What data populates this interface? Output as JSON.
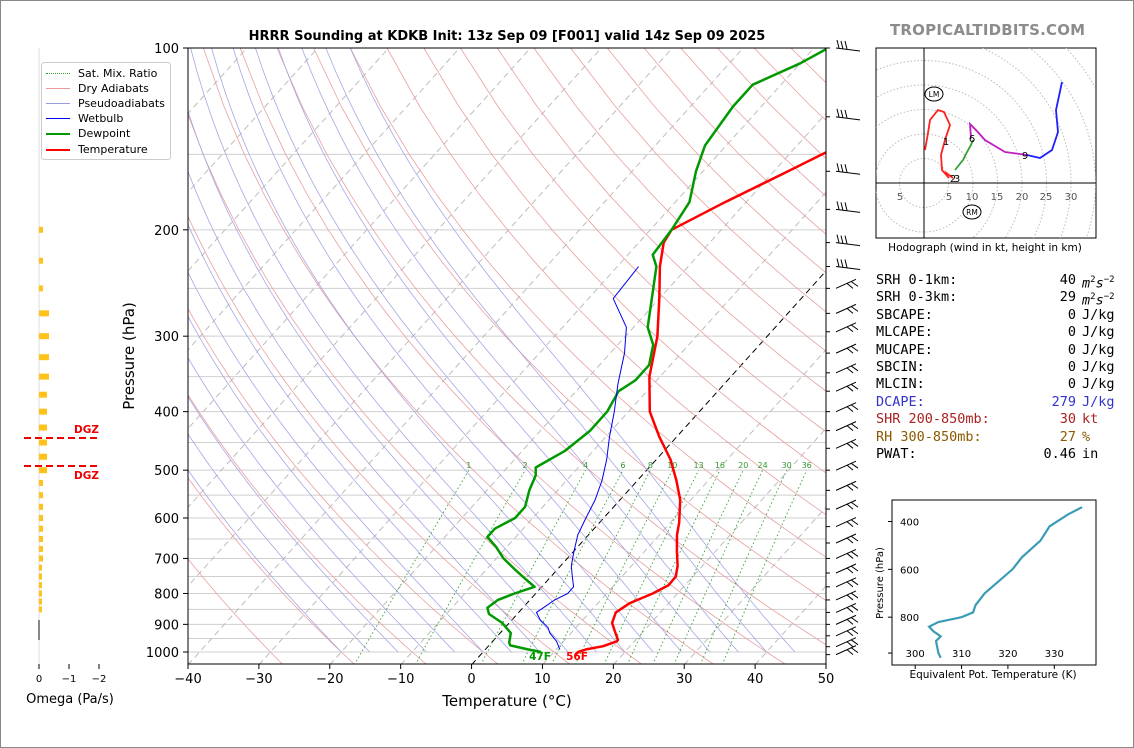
{
  "brand": "TROPICALTIDBITS.COM",
  "chart_data": {
    "type": "line",
    "title": "HRRR Sounding at KDKB Init: 13z Sep 09 [F001] valid 14z Sep 09 2025",
    "xlabel": "Temperature (°C)",
    "ylabel": "Pressure (hPa)",
    "xlim": [
      -40,
      50
    ],
    "ylim": [
      1050,
      100
    ],
    "x_ticks": [
      "−40",
      "−30",
      "−20",
      "−10",
      "0",
      "10",
      "20",
      "30",
      "40",
      "50"
    ],
    "y_ticks": [
      "100",
      "200",
      "300",
      "400",
      "500",
      "600",
      "700",
      "800",
      "900",
      "1000"
    ],
    "y_scale": "log",
    "legend_position": "top-left",
    "legend": [
      "Sat. Mix. Ratio",
      "Dry Adiabats",
      "Pseudoadiabats",
      "Wetbulb",
      "Dewpoint",
      "Temperature"
    ],
    "mixing_ratio_labels": [
      "1",
      "2",
      "4",
      "6",
      "8",
      "10",
      "13",
      "16",
      "20",
      "24",
      "30",
      "36"
    ],
    "series": [
      {
        "name": "Temperature",
        "color": "#ff0000",
        "points": [
          [
            17.5,
            960
          ],
          [
            16.2,
            978
          ],
          [
            14.2,
            990
          ],
          [
            13.4,
            1000
          ],
          [
            13.4,
            1010
          ],
          [
            17.5,
            955
          ],
          [
            16,
            925
          ],
          [
            14.5,
            895
          ],
          [
            13.7,
            860
          ],
          [
            14.5,
            830
          ],
          [
            16.5,
            800
          ],
          [
            17.7,
            775
          ],
          [
            17.6,
            750
          ],
          [
            16.5,
            720
          ],
          [
            14.5,
            680
          ],
          [
            12.5,
            640
          ],
          [
            11.2,
            610
          ],
          [
            8.5,
            560
          ],
          [
            5.5,
            520
          ],
          [
            2,
            480
          ],
          [
            -2.5,
            440
          ],
          [
            -7,
            400
          ],
          [
            -11.5,
            350
          ],
          [
            -15.5,
            300
          ],
          [
            -20,
            260
          ],
          [
            -24,
            230
          ],
          [
            -26.5,
            210
          ],
          [
            -27,
            200
          ],
          [
            -23,
            180
          ],
          [
            -18,
            160
          ],
          [
            -14,
            145
          ],
          [
            -10,
            132
          ],
          [
            -5,
            118
          ],
          [
            -1.5,
            108
          ],
          [
            2.5,
            100
          ]
        ]
      },
      {
        "name": "Dewpoint",
        "color": "#009900",
        "points": [
          [
            8.2,
            1000
          ],
          [
            6,
            990
          ],
          [
            3,
            975
          ],
          [
            2.5,
            965
          ],
          [
            1.5,
            930
          ],
          [
            -1,
            895
          ],
          [
            -4,
            865
          ],
          [
            -5,
            845
          ],
          [
            -4.5,
            820
          ],
          [
            -3,
            800
          ],
          [
            -1,
            780
          ],
          [
            -3,
            760
          ],
          [
            -6,
            730
          ],
          [
            -9,
            700
          ],
          [
            -11.5,
            670
          ],
          [
            -14,
            645
          ],
          [
            -14,
            625
          ],
          [
            -12.5,
            600
          ],
          [
            -12.5,
            575
          ],
          [
            -14,
            540
          ],
          [
            -15,
            510
          ],
          [
            -16,
            495
          ],
          [
            -14,
            465
          ],
          [
            -13,
            430
          ],
          [
            -13,
            400
          ],
          [
            -14,
            370
          ],
          [
            -13,
            355
          ],
          [
            -13,
            335
          ],
          [
            -15,
            310
          ],
          [
            -18,
            290
          ],
          [
            -20,
            270
          ],
          [
            -24.5,
            230
          ],
          [
            -26.5,
            220
          ],
          [
            -27,
            200
          ],
          [
            -28,
            180
          ],
          [
            -31,
            160
          ],
          [
            -33,
            145
          ],
          [
            -34,
            125
          ],
          [
            -34,
            115
          ],
          [
            -30,
            106
          ],
          [
            -28,
            100
          ]
        ]
      },
      {
        "name": "Wetbulb",
        "color": "#0000ee",
        "points": [
          [
            10.5,
            990
          ],
          [
            9,
            960
          ],
          [
            7,
            930
          ],
          [
            6,
            910
          ],
          [
            4,
            885
          ],
          [
            2.5,
            860
          ],
          [
            3,
            840
          ],
          [
            3.5,
            820
          ],
          [
            4.5,
            800
          ],
          [
            4.5,
            780
          ],
          [
            3,
            750
          ],
          [
            1.5,
            720
          ],
          [
            0,
            680
          ],
          [
            -1.5,
            640
          ],
          [
            -2.5,
            600
          ],
          [
            -3.5,
            560
          ],
          [
            -5,
            520
          ],
          [
            -7,
            480
          ],
          [
            -9.5,
            440
          ],
          [
            -12,
            400
          ],
          [
            -15,
            360
          ],
          [
            -18,
            320
          ],
          [
            -21,
            290
          ],
          [
            -26.5,
            260
          ],
          [
            -27,
            230
          ]
        ]
      }
    ],
    "surface_labels": {
      "dewpoint": "47F",
      "temperature": "56F"
    },
    "hodograph": {
      "caption": "Hodograph (wind in kt, height in km)",
      "ring_labels": [
        "5",
        "5",
        "10",
        "15",
        "20",
        "25",
        "30"
      ],
      "markers": [
        "LM",
        "RM"
      ],
      "height_labels": [
        "1",
        "6",
        "9",
        "2",
        "3"
      ]
    },
    "omega": {
      "xlabel": "Omega (Pa/s)",
      "x_ticks": [
        "0",
        "−1",
        "−2"
      ],
      "dgz_label": "DGZ"
    },
    "theta_e": {
      "ylabel": "Pressure (hPa)",
      "xlabel": "Equivalent Pot. Temperature (K)",
      "x_ticks": [
        "300",
        "310",
        "320",
        "330"
      ],
      "y_ticks": [
        "400",
        "600",
        "800"
      ]
    }
  },
  "params": [
    {
      "label": "SRH 0-1km:",
      "value": "40",
      "unit": "m2s-2",
      "color": "#000000"
    },
    {
      "label": "SRH 0-3km:",
      "value": "29",
      "unit": "m2s-2",
      "color": "#000000"
    },
    {
      "label": "SBCAPE:",
      "value": "0",
      "unit": "J/kg",
      "color": "#000000"
    },
    {
      "label": "MLCAPE:",
      "value": "0",
      "unit": "J/kg",
      "color": "#000000"
    },
    {
      "label": "MUCAPE:",
      "value": "0",
      "unit": "J/kg",
      "color": "#000000"
    },
    {
      "label": "SBCIN:",
      "value": "0",
      "unit": "J/kg",
      "color": "#000000"
    },
    {
      "label": "MLCIN:",
      "value": "0",
      "unit": "J/kg",
      "color": "#000000"
    },
    {
      "label": "DCAPE:",
      "value": "279",
      "unit": "J/kg",
      "color": "#3333cc"
    },
    {
      "label": "SHR 200-850mb:",
      "value": "30",
      "unit": "kt",
      "color": "#aa2222"
    },
    {
      "label": "RH 300-850mb:",
      "value": "27",
      "unit": "%",
      "color": "#8b5a00"
    },
    {
      "label": "PWAT:",
      "value": "0.46",
      "unit": "in",
      "color": "#000000"
    }
  ]
}
